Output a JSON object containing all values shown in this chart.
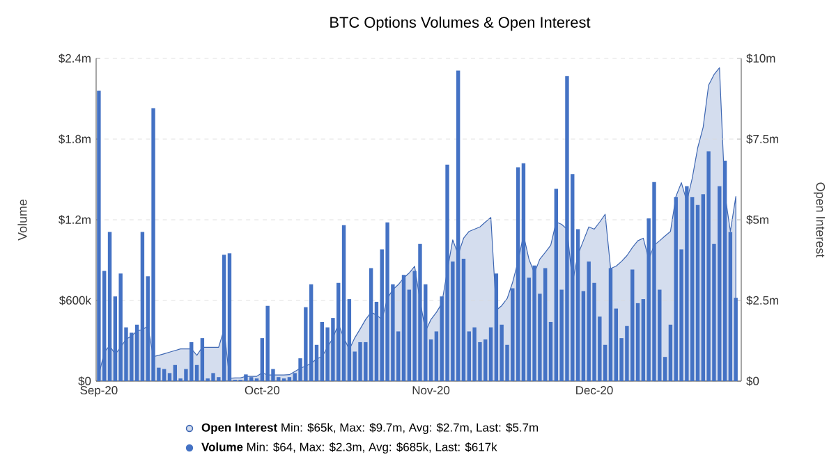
{
  "chart_data": {
    "type": "bar",
    "title": "BTC Options Volumes & Open Interest",
    "ylabel": "Volume",
    "y2label": "Open Interest",
    "x": [
      "2020-09-01",
      "2020-09-02",
      "2020-09-03",
      "2020-09-04",
      "2020-09-05",
      "2020-09-06",
      "2020-09-07",
      "2020-09-08",
      "2020-09-09",
      "2020-09-10",
      "2020-09-11",
      "2020-09-12",
      "2020-09-13",
      "2020-09-14",
      "2020-09-15",
      "2020-09-16",
      "2020-09-17",
      "2020-09-18",
      "2020-09-19",
      "2020-09-20",
      "2020-09-21",
      "2020-09-22",
      "2020-09-23",
      "2020-09-24",
      "2020-09-25",
      "2020-09-26",
      "2020-09-27",
      "2020-09-28",
      "2020-09-29",
      "2020-09-30",
      "2020-10-01",
      "2020-10-02",
      "2020-10-03",
      "2020-10-04",
      "2020-10-05",
      "2020-10-06",
      "2020-10-07",
      "2020-10-08",
      "2020-10-09",
      "2020-10-10",
      "2020-10-11",
      "2020-10-12",
      "2020-10-13",
      "2020-10-14",
      "2020-10-15",
      "2020-10-16",
      "2020-10-17",
      "2020-10-18",
      "2020-10-19",
      "2020-10-20",
      "2020-10-21",
      "2020-10-22",
      "2020-10-23",
      "2020-10-24",
      "2020-10-25",
      "2020-10-26",
      "2020-10-27",
      "2020-10-28",
      "2020-10-29",
      "2020-10-30",
      "2020-10-31",
      "2020-11-01",
      "2020-11-02",
      "2020-11-03",
      "2020-11-04",
      "2020-11-05",
      "2020-11-06",
      "2020-11-07",
      "2020-11-08",
      "2020-11-09",
      "2020-11-10",
      "2020-11-11",
      "2020-11-12",
      "2020-11-13",
      "2020-11-14",
      "2020-11-15",
      "2020-11-16",
      "2020-11-17",
      "2020-11-18",
      "2020-11-19",
      "2020-11-20",
      "2020-11-21",
      "2020-11-22",
      "2020-11-23",
      "2020-11-24",
      "2020-11-25",
      "2020-11-26",
      "2020-11-27",
      "2020-11-28",
      "2020-11-29",
      "2020-11-30",
      "2020-12-01",
      "2020-12-02",
      "2020-12-03",
      "2020-12-04",
      "2020-12-05",
      "2020-12-06",
      "2020-12-07",
      "2020-12-08",
      "2020-12-09",
      "2020-12-10",
      "2020-12-11",
      "2020-12-12",
      "2020-12-13",
      "2020-12-14",
      "2020-12-15",
      "2020-12-16",
      "2020-12-17",
      "2020-12-18",
      "2020-12-19",
      "2020-12-20",
      "2020-12-21",
      "2020-12-22",
      "2020-12-23",
      "2020-12-24",
      "2020-12-25",
      "2020-12-26",
      "2020-12-27"
    ],
    "series": [
      {
        "name": "**Open Interest** Min: $65k, Max: $9.7m, Avg: $2.7m, Last: $5.7m",
        "type": "area",
        "axis": "y2",
        "color": "#d4ddee",
        "values": [
          200000,
          900000,
          1100000,
          830000,
          1050000,
          1300000,
          1400000,
          1550000,
          1600000,
          1700000,
          760000,
          800000,
          850000,
          900000,
          950000,
          1000000,
          1000000,
          1000000,
          800000,
          1050000,
          1050000,
          1050000,
          1050000,
          1600000,
          90000,
          100000,
          100000,
          150000,
          150000,
          150000,
          260000,
          190000,
          190000,
          190000,
          190000,
          200000,
          300000,
          400000,
          470000,
          550000,
          690000,
          760000,
          1050000,
          1340000,
          1770000,
          1340000,
          980000,
          1340000,
          1620000,
          1910000,
          2130000,
          2050000,
          1910000,
          2560000,
          2840000,
          2990000,
          3200000,
          3350000,
          3560000,
          2490000,
          1550000,
          1910000,
          2130000,
          2410000,
          3420000,
          4380000,
          3920000,
          4430000,
          4640000,
          4710000,
          4780000,
          4930000,
          5070000,
          2200000,
          2340000,
          2560000,
          3060000,
          3710000,
          4530000,
          3780000,
          3350000,
          3780000,
          3990000,
          4210000,
          4930000,
          4860000,
          4710000,
          3060000,
          3920000,
          4350000,
          4780000,
          4710000,
          4930000,
          5170000,
          3490000,
          3560000,
          3710000,
          3890000,
          4140000,
          4350000,
          4430000,
          3780000,
          4210000,
          4350000,
          4500000,
          4640000,
          5720000,
          6150000,
          5570000,
          6290000,
          7230000,
          7870000,
          9170000,
          9500000,
          9710000,
          5790000,
          4640000,
          5720000
        ]
      },
      {
        "name": "**Volume** Min: $64, Max: $2.3m, Avg: $685k, Last: $617k",
        "axis": "y",
        "color": "#4472c4",
        "values": [
          2160000,
          820000,
          1110000,
          630000,
          800000,
          400000,
          360000,
          420000,
          1110000,
          780000,
          2030000,
          100000,
          90000,
          60000,
          120000,
          20000,
          90000,
          290000,
          120000,
          320000,
          20000,
          60000,
          30000,
          940000,
          950000,
          10000,
          10000,
          50000,
          30000,
          20000,
          320000,
          560000,
          90000,
          30000,
          20000,
          30000,
          60000,
          170000,
          550000,
          720000,
          270000,
          440000,
          400000,
          470000,
          730000,
          1160000,
          610000,
          220000,
          290000,
          290000,
          840000,
          590000,
          980000,
          1180000,
          720000,
          370000,
          790000,
          680000,
          820000,
          1020000,
          720000,
          310000,
          370000,
          630000,
          1610000,
          890000,
          2310000,
          910000,
          370000,
          400000,
          290000,
          310000,
          400000,
          800000,
          420000,
          270000,
          690000,
          1590000,
          1620000,
          770000,
          860000,
          650000,
          840000,
          440000,
          1430000,
          680000,
          2270000,
          1540000,
          1130000,
          670000,
          890000,
          730000,
          480000,
          270000,
          840000,
          540000,
          320000,
          410000,
          830000,
          580000,
          610000,
          1210000,
          1480000,
          680000,
          180000,
          420000,
          1370000,
          980000,
          1450000,
          1370000,
          1310000,
          1390000,
          1710000,
          1020000,
          1450000,
          1640000,
          1110000,
          620000
        ]
      }
    ],
    "xlim": [
      "2020-08-31T12:00",
      "2020-12-28T00:00"
    ],
    "xticks": [
      {
        "value": "2020-09-01",
        "label": "Sep-20"
      },
      {
        "value": "2020-10-01",
        "label": "Oct-20"
      },
      {
        "value": "2020-11-01",
        "label": "Nov-20"
      },
      {
        "value": "2020-12-01",
        "label": "Dec-20"
      }
    ],
    "ylim": [
      0,
      2400000
    ],
    "yticks": [
      {
        "value": 0,
        "label": "$0"
      },
      {
        "value": 600000,
        "label": "$600k"
      },
      {
        "value": 1200000,
        "label": "$1.2m"
      },
      {
        "value": 1800000,
        "label": "$1.8m"
      },
      {
        "value": 2400000,
        "label": "$2.4m"
      }
    ],
    "y2lim": [
      0,
      10000000
    ],
    "y2ticks": [
      {
        "value": 0,
        "label": "$0"
      },
      {
        "value": 2500000,
        "label": "$2.5m"
      },
      {
        "value": 5000000,
        "label": "$5m"
      },
      {
        "value": 7500000,
        "label": "$7.5m"
      },
      {
        "value": 10000000,
        "label": "$10m"
      }
    ],
    "grid": "y",
    "legend": "bottom"
  }
}
